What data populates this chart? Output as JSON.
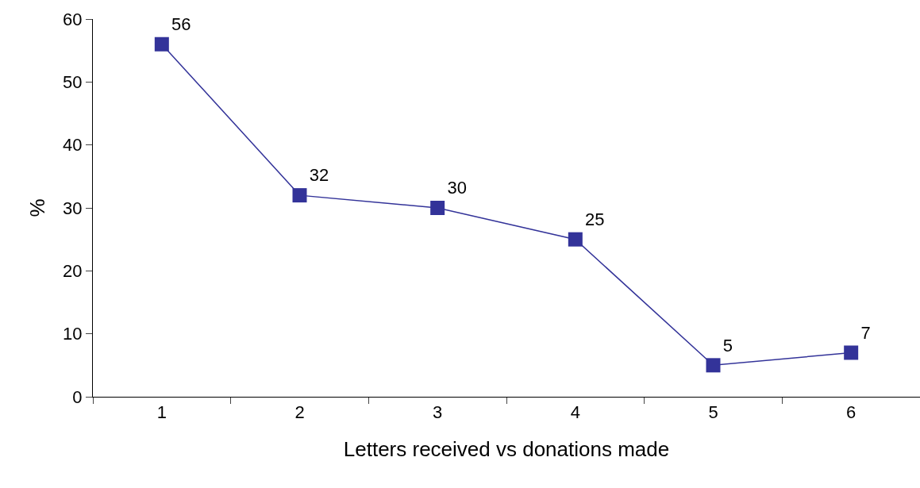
{
  "chart_data": {
    "type": "line",
    "xlabel": "Letters received vs donations made",
    "ylabel": "%",
    "categories": [
      "1",
      "2",
      "3",
      "4",
      "5",
      "6"
    ],
    "series": [
      {
        "color": "#333399",
        "values": [
          56,
          32,
          30,
          25,
          5,
          7
        ]
      }
    ],
    "ylim": [
      0,
      60
    ],
    "yticks": [
      0,
      10,
      20,
      30,
      40,
      50,
      60
    ],
    "marker": "square",
    "line_style": "solid",
    "data_labels": true
  }
}
